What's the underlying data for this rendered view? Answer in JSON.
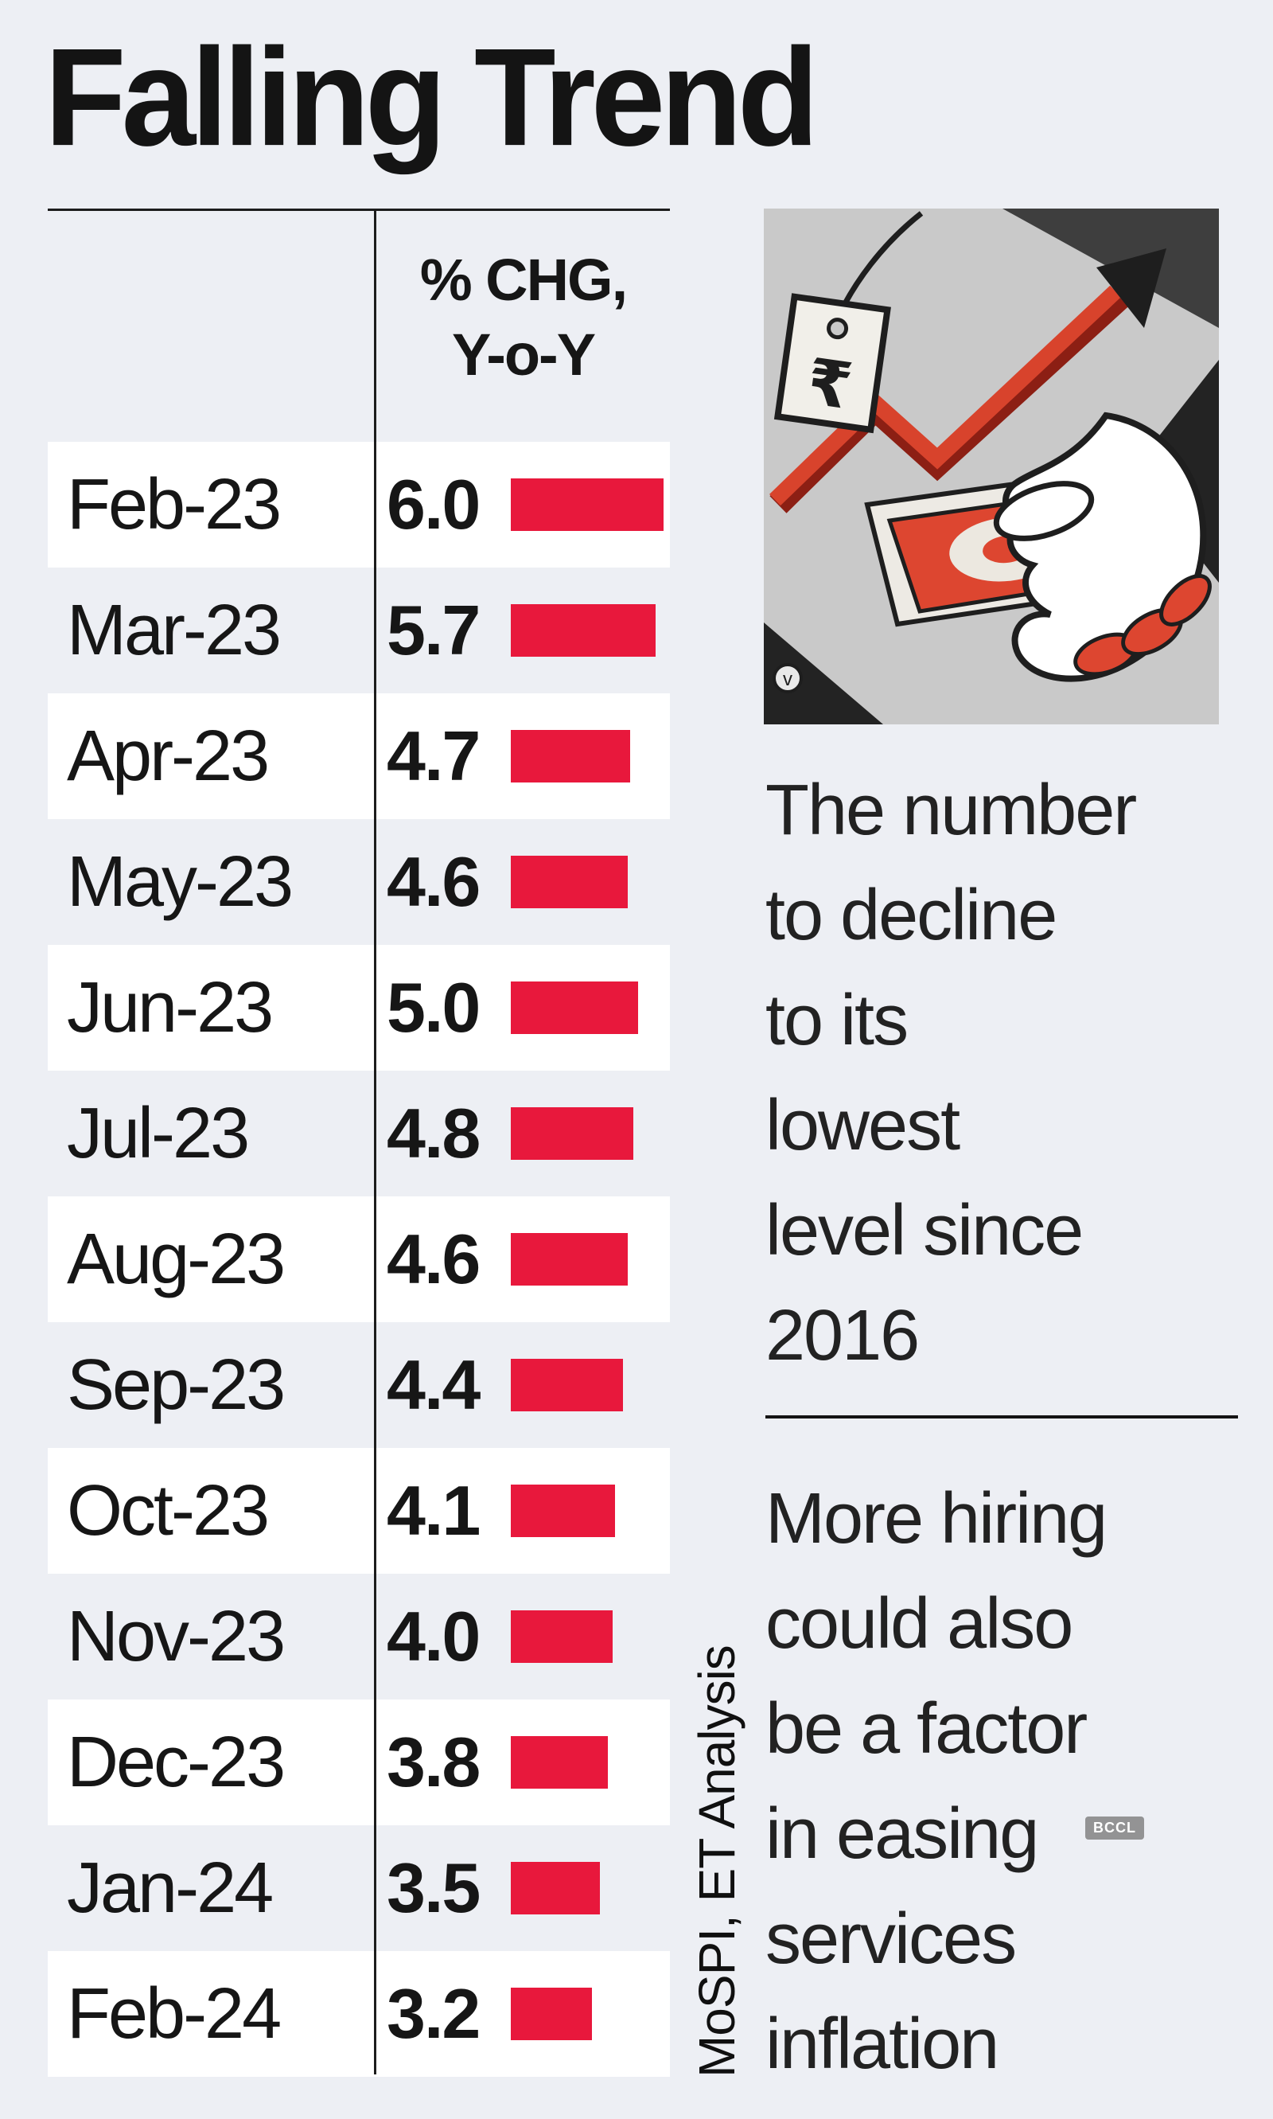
{
  "page": {
    "title": "Falling Trend"
  },
  "table": {
    "header_line1": "% CHG,",
    "header_line2": "Y-o-Y",
    "rows": [
      {
        "month": "Feb-23",
        "value": "6.0"
      },
      {
        "month": "Mar-23",
        "value": "5.7"
      },
      {
        "month": "Apr-23",
        "value": "4.7"
      },
      {
        "month": "May-23",
        "value": "4.6"
      },
      {
        "month": "Jun-23",
        "value": "5.0"
      },
      {
        "month": "Jul-23",
        "value": "4.8"
      },
      {
        "month": "Aug-23",
        "value": "4.6"
      },
      {
        "month": "Sep-23",
        "value": "4.4"
      },
      {
        "month": "Oct-23",
        "value": "4.1"
      },
      {
        "month": "Nov-23",
        "value": "4.0"
      },
      {
        "month": "Dec-23",
        "value": "3.8"
      },
      {
        "month": "Jan-24",
        "value": "3.5"
      },
      {
        "month": "Feb-24",
        "value": "3.2"
      }
    ]
  },
  "callouts": {
    "first": "The number\nto decline\nto its\nlowest\nlevel since\n2016",
    "second": "More hiring\ncould also\nbe a factor\nin easing\nservices\ninflation"
  },
  "source_note": "MoSPI, ET Analysis",
  "watermark": "BCCL",
  "illustration": {
    "tag_symbol": "₹",
    "artist_mark": "v"
  },
  "colors": {
    "bar_red": "#e8183c",
    "page_background": "#edeff4",
    "row_stripe": "#ffffff",
    "ink": "#161616",
    "illustration_gray": "#c9c9c9"
  },
  "chart_data": {
    "type": "bar",
    "orientation": "horizontal",
    "title": "Falling Trend",
    "value_label": "% CHG, Y-o-Y",
    "categories": [
      "Feb-23",
      "Mar-23",
      "Apr-23",
      "May-23",
      "Jun-23",
      "Jul-23",
      "Aug-23",
      "Sep-23",
      "Oct-23",
      "Nov-23",
      "Dec-23",
      "Jan-24",
      "Feb-24"
    ],
    "values": [
      6.0,
      5.7,
      4.7,
      4.6,
      5.0,
      4.8,
      4.6,
      4.4,
      4.1,
      4.0,
      3.8,
      3.5,
      3.2
    ],
    "xlim": [
      0,
      6.0
    ],
    "grid": false,
    "legend": false,
    "source": "MoSPI, ET Analysis"
  }
}
